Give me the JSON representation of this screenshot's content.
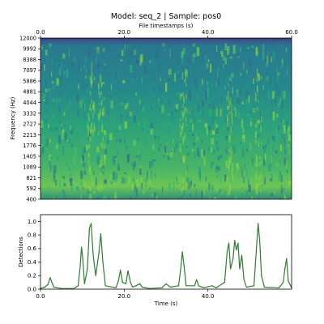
{
  "title": "Model: seq_2 | Sample: pos0",
  "chart_data": [
    {
      "type": "heatmap",
      "title": "Model: seq_2 | Sample: pos0",
      "top_xlabel": "File timestamps (s)",
      "ylabel": "Frequency (Hz)",
      "xlim": [
        0,
        60
      ],
      "top_xticks": [
        "0.0",
        "20.0",
        "40.0",
        "60.0"
      ],
      "top_xtick_values": [
        0,
        20,
        40,
        60
      ],
      "y_ticks": [
        "12000",
        "9992",
        "8388",
        "7097",
        "5886",
        "4881",
        "4044",
        "3332",
        "2727",
        "2213",
        "1776",
        "1405",
        "1089",
        "821",
        "592",
        "400"
      ],
      "colormap": "viridis",
      "grid": false
    },
    {
      "type": "line",
      "xlabel": "Time (s)",
      "ylabel": "Detections",
      "xlim": [
        0,
        60
      ],
      "ylim": [
        0,
        1.1
      ],
      "xticks": [
        "0.0",
        "20.0",
        "40.0"
      ],
      "xtick_values": [
        0,
        20,
        40
      ],
      "yticks": [
        "0.0",
        "0.2",
        "0.4",
        "0.6",
        "0.8",
        "1.0"
      ],
      "ytick_values": [
        0,
        0.2,
        0.4,
        0.6,
        0.8,
        1.0
      ],
      "line_color": "#2e7d32",
      "grid": false,
      "series": [
        {
          "values": [
            [
              0.0,
              0.01
            ],
            [
              1.0,
              0.03
            ],
            [
              1.8,
              0.07
            ],
            [
              2.3,
              0.17
            ],
            [
              2.7,
              0.1
            ],
            [
              3.2,
              0.03
            ],
            [
              5.0,
              0.01
            ],
            [
              8.0,
              0.01
            ],
            [
              9.0,
              0.05
            ],
            [
              9.5,
              0.35
            ],
            [
              9.8,
              0.62
            ],
            [
              10.1,
              0.45
            ],
            [
              10.5,
              0.08
            ],
            [
              11.2,
              0.3
            ],
            [
              11.7,
              0.9
            ],
            [
              12.1,
              0.97
            ],
            [
              12.6,
              0.5
            ],
            [
              13.2,
              0.2
            ],
            [
              14.0,
              0.55
            ],
            [
              14.4,
              0.82
            ],
            [
              14.9,
              0.4
            ],
            [
              15.5,
              0.05
            ],
            [
              18.0,
              0.02
            ],
            [
              18.6,
              0.12
            ],
            [
              19.1,
              0.28
            ],
            [
              19.6,
              0.1
            ],
            [
              20.4,
              0.08
            ],
            [
              20.9,
              0.27
            ],
            [
              21.5,
              0.1
            ],
            [
              22.0,
              0.03
            ],
            [
              22.8,
              0.05
            ],
            [
              23.7,
              0.08
            ],
            [
              24.3,
              0.03
            ],
            [
              26.0,
              0.01
            ],
            [
              29.0,
              0.02
            ],
            [
              30.0,
              0.08
            ],
            [
              31.0,
              0.03
            ],
            [
              33.0,
              0.05
            ],
            [
              33.6,
              0.35
            ],
            [
              33.9,
              0.55
            ],
            [
              34.3,
              0.35
            ],
            [
              34.8,
              0.05
            ],
            [
              36.8,
              0.05
            ],
            [
              37.3,
              0.14
            ],
            [
              37.8,
              0.05
            ],
            [
              39.0,
              0.02
            ],
            [
              41.0,
              0.05
            ],
            [
              42.0,
              0.02
            ],
            [
              44.0,
              0.1
            ],
            [
              44.6,
              0.55
            ],
            [
              45.0,
              0.68
            ],
            [
              45.4,
              0.3
            ],
            [
              46.0,
              0.45
            ],
            [
              46.4,
              0.72
            ],
            [
              46.8,
              0.58
            ],
            [
              47.2,
              0.68
            ],
            [
              47.6,
              0.3
            ],
            [
              48.1,
              0.5
            ],
            [
              48.6,
              0.15
            ],
            [
              49.2,
              0.03
            ],
            [
              51.0,
              0.05
            ],
            [
              51.6,
              0.6
            ],
            [
              52.0,
              0.97
            ],
            [
              52.4,
              0.7
            ],
            [
              52.8,
              0.2
            ],
            [
              53.5,
              0.03
            ],
            [
              57.0,
              0.02
            ],
            [
              58.0,
              0.1
            ],
            [
              58.4,
              0.3
            ],
            [
              58.8,
              0.45
            ],
            [
              59.2,
              0.12
            ],
            [
              60.0,
              0.02
            ]
          ]
        }
      ]
    }
  ]
}
